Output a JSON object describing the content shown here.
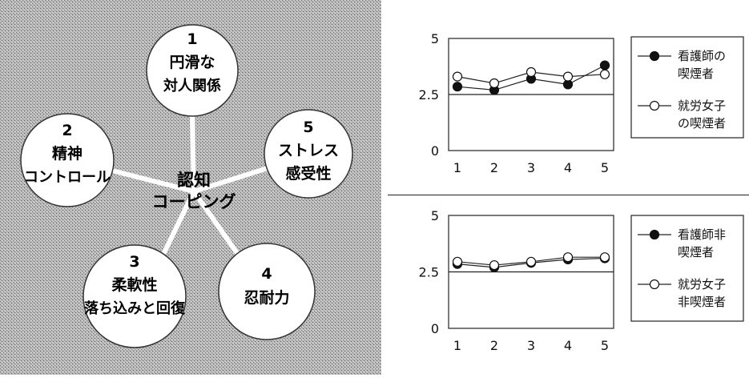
{
  "diagram": {
    "center": {
      "line1": "認知",
      "line2": "コーピング"
    },
    "nodes": [
      {
        "number": "1",
        "line1": "円滑な",
        "line2": "対人関係"
      },
      {
        "number": "2",
        "line1": "精神",
        "line2": "コントロール"
      },
      {
        "number": "3",
        "line1": "柔軟性",
        "line2": "落ち込みと回復"
      },
      {
        "number": "4",
        "line1": "忍耐力",
        "line2": ""
      },
      {
        "number": "5",
        "line1": "ストレス",
        "line2": "感受性"
      }
    ]
  },
  "chart_data": [
    {
      "type": "line",
      "x": [
        1,
        2,
        3,
        4,
        5
      ],
      "xticks": [
        "1",
        "2",
        "3",
        "4",
        "5"
      ],
      "ylim": [
        0,
        5
      ],
      "yticks": [
        "0",
        "2.5",
        "5"
      ],
      "reference_line": 2.5,
      "legend_position": "right",
      "series": [
        {
          "name_line1": "看護師の",
          "name_line2": "喫煙者",
          "marker": "filled",
          "values": [
            2.85,
            2.7,
            3.2,
            2.95,
            3.8
          ]
        },
        {
          "name_line1": "就労女子",
          "name_line2": "の喫煙者",
          "marker": "open",
          "values": [
            3.3,
            3.0,
            3.5,
            3.3,
            3.4
          ]
        }
      ]
    },
    {
      "type": "line",
      "x": [
        1,
        2,
        3,
        4,
        5
      ],
      "xticks": [
        "1",
        "2",
        "3",
        "4",
        "5"
      ],
      "ylim": [
        0,
        5
      ],
      "yticks": [
        "0",
        "2.5",
        "5"
      ],
      "reference_line": 2.5,
      "legend_position": "right",
      "series": [
        {
          "name_line1": "看護師非",
          "name_line2": "喫煙者",
          "marker": "filled",
          "values": [
            2.85,
            2.7,
            2.9,
            3.05,
            3.1
          ]
        },
        {
          "name_line1": "就労女子",
          "name_line2": "非喫煙者",
          "marker": "open",
          "values": [
            2.95,
            2.8,
            2.95,
            3.15,
            3.15
          ]
        }
      ]
    }
  ]
}
